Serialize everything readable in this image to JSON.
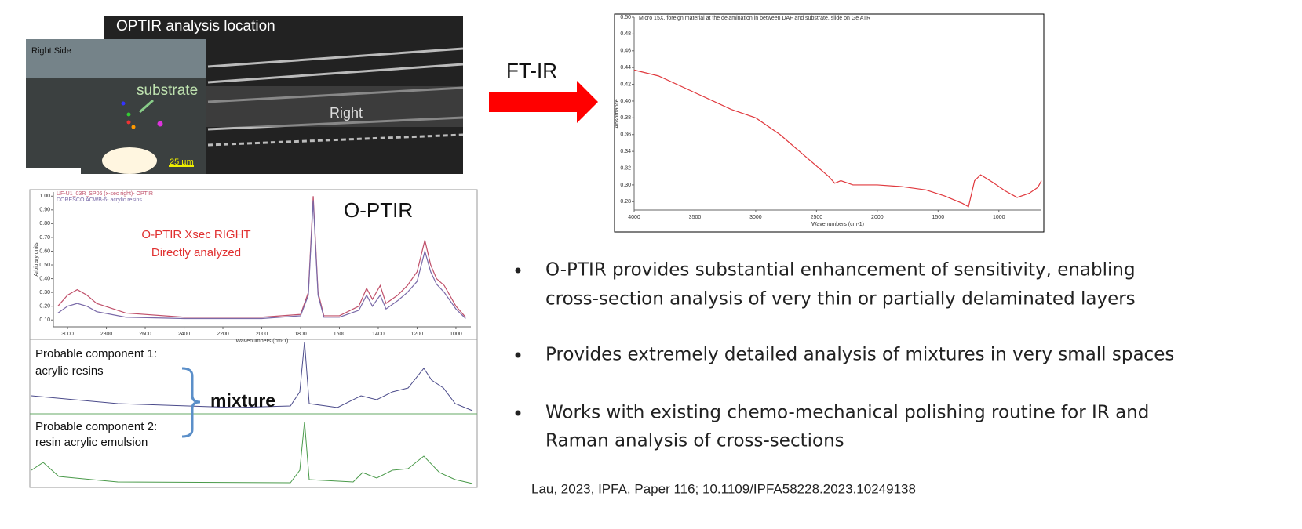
{
  "photo": {
    "title": "OPTIR analysis location",
    "side": "Right Side",
    "substrate": "substrate",
    "right": "Right",
    "scale": "25 µm"
  },
  "labels": {
    "ftir": "FT-IR",
    "optir": "O-PTIR",
    "xsec": "O-PTIR Xsec RIGHT",
    "direct": "Directly analyzed",
    "mixture": "mixture",
    "comp1": "Probable component 1:",
    "comp1b": "acrylic resins",
    "comp2": "Probable component 2:",
    "comp2b": "resin acrylic emulsion"
  },
  "chart_data": [
    {
      "type": "line",
      "title": "Micro 15X, foreign material at the delamination in between DAF and substrate, slide on Ge ATR",
      "x_label": "Wavenumbers (cm-1)",
      "y_label": "Absorbance",
      "x": [
        4000,
        3800,
        3500,
        3200,
        3000,
        2800,
        2600,
        2400,
        2350,
        2300,
        2200,
        2000,
        1800,
        1600,
        1450,
        1300,
        1250,
        1200,
        1150,
        1050,
        950,
        850,
        750,
        680,
        650
      ],
      "series": [
        {
          "name": "Absorbance",
          "color": "#e0393e",
          "values": [
            0.437,
            0.43,
            0.41,
            0.39,
            0.38,
            0.36,
            0.335,
            0.31,
            0.302,
            0.305,
            0.3,
            0.3,
            0.298,
            0.294,
            0.287,
            0.278,
            0.274,
            0.305,
            0.312,
            0.303,
            0.293,
            0.285,
            0.29,
            0.297,
            0.305
          ]
        }
      ],
      "xlim": [
        4000,
        650
      ],
      "ylim": [
        0.27,
        0.5
      ],
      "xticks": [
        4000,
        3500,
        3000,
        2500,
        2000,
        1500,
        1000
      ],
      "yticks": [
        {
          "value": 0.5,
          "label": "0.50"
        },
        0.48,
        0.46,
        0.44,
        0.42,
        {
          "value": 0.4,
          "label": "0.40"
        },
        0.38,
        0.36,
        0.34,
        0.32,
        {
          "value": 0.3,
          "label": "0.30"
        },
        0.28
      ]
    },
    {
      "type": "line",
      "x_label": "Wavenumbers (cm-1)",
      "y_label": "Arbitrary units",
      "x": [
        3050,
        3000,
        2950,
        2900,
        2850,
        2700,
        2400,
        2000,
        1800,
        1760,
        1735,
        1710,
        1680,
        1600,
        1500,
        1460,
        1430,
        1390,
        1360,
        1300,
        1250,
        1200,
        1160,
        1130,
        1100,
        1060,
        1000,
        950
      ],
      "series": [
        {
          "name": "UF-U1_03R_SP06 (x-sec right)- OPTIR",
          "color": "#c0506a",
          "values": [
            0.2,
            0.28,
            0.32,
            0.28,
            0.22,
            0.15,
            0.12,
            0.12,
            0.14,
            0.3,
            1.0,
            0.3,
            0.13,
            0.13,
            0.2,
            0.33,
            0.25,
            0.35,
            0.22,
            0.28,
            0.35,
            0.45,
            0.68,
            0.5,
            0.4,
            0.35,
            0.2,
            0.12
          ]
        },
        {
          "name": "DORESCO ACWB-6- acrylic resins",
          "color": "#7a6aa8",
          "values": [
            0.15,
            0.2,
            0.22,
            0.2,
            0.16,
            0.12,
            0.11,
            0.11,
            0.13,
            0.28,
            0.97,
            0.28,
            0.12,
            0.12,
            0.17,
            0.28,
            0.2,
            0.28,
            0.18,
            0.24,
            0.3,
            0.38,
            0.6,
            0.45,
            0.36,
            0.3,
            0.18,
            0.11
          ]
        }
      ],
      "xlim": [
        3073,
        923
      ],
      "ylim": [
        0.05,
        1.03
      ],
      "xticks": [
        3000,
        2800,
        2600,
        2400,
        2200,
        2000,
        1800,
        1600,
        1400,
        1200,
        1000
      ],
      "yticks": [
        {
          "value": 1,
          "label": "1.00"
        },
        {
          "value": 0.9,
          "label": "0.90"
        },
        {
          "value": 0.8,
          "label": "0.80"
        },
        {
          "value": 0.7,
          "label": "0.70"
        },
        {
          "value": 0.6,
          "label": "0.60"
        },
        {
          "value": 0.5,
          "label": "0.50"
        },
        {
          "value": 0.4,
          "label": "0.40"
        },
        {
          "value": 0.3,
          "label": "0.30"
        },
        {
          "value": 0.2,
          "label": "0.20"
        },
        {
          "value": 0.1,
          "label": "0.10"
        }
      ]
    }
  ],
  "bullets": [
    [
      "O-PTIR provides substantial enhancement of sensitivity, enabling",
      "cross-section analysis of very thin or partially delaminated layers"
    ],
    [
      "Provides extremely detailed analysis of mixtures in very small spaces"
    ],
    [
      "Works with existing chemo-mechanical polishing routine for IR and",
      "Raman analysis of cross-sections"
    ]
  ],
  "citation": "Lau, 2023, IPFA, Paper 116; 10.1109/IPFA58228.2023.10249138"
}
